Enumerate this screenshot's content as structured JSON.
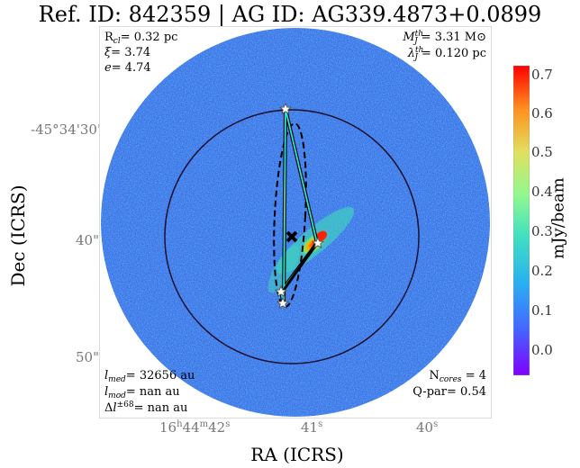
{
  "title": "Ref. ID: 842359 | AG ID: AG339.4873+0.0899",
  "axes": {
    "xlabel": "RA (ICRS)",
    "ylabel": "Dec (ICRS)",
    "yticks": [
      "-45°34'30\"",
      "40\"",
      "50\""
    ],
    "xticks": [
      "16h44m42s",
      "41s",
      "40s"
    ]
  },
  "annotations": {
    "top_left": [
      "R_cl= 0.32 pc",
      "ξ= 3.74",
      "e= 4.74"
    ],
    "top_right": [
      "M_J^th= 3.31 M⊙",
      "λ_J^th= 0.120 pc"
    ],
    "bottom_left": [
      "l_med= 32656 au",
      "l_mod= nan au",
      "Δl^±68= nan au"
    ],
    "bottom_right": [
      "N_cores = 4",
      "Q-par= 0.54"
    ]
  },
  "colorbar": {
    "label": "mJy/beam",
    "ticks": [
      "0.7",
      "0.6",
      "0.5",
      "0.4",
      "0.3",
      "0.2",
      "0.1",
      "0.0"
    ],
    "min": -0.05,
    "max": 0.72
  },
  "colors": {
    "background_field": "#4a5fe8",
    "hotspot": "#ff2a00"
  }
}
